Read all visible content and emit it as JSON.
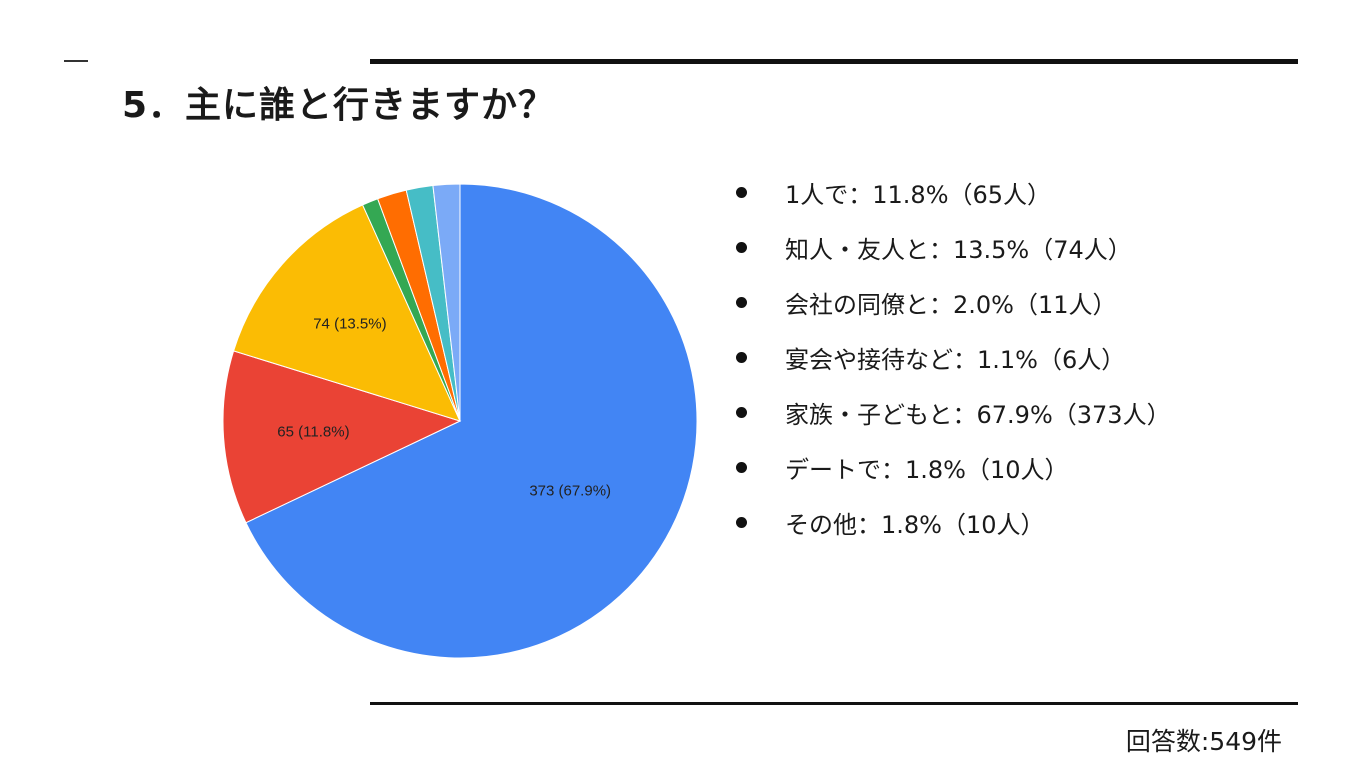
{
  "title": "5．主に誰と行きますか？",
  "footer": "回答数:549件",
  "chart_data": {
    "type": "pie",
    "title": "",
    "start_angle_deg": 0,
    "direction": "clockwise",
    "slices": [
      {
        "label": "家族・子どもと",
        "value": 373,
        "pct": 67.9,
        "color": "#4285F4",
        "data_label": "373 (67.9%)"
      },
      {
        "label": "1人で",
        "value": 65,
        "pct": 11.8,
        "color": "#EA4335",
        "data_label": "65 (11.8%)"
      },
      {
        "label": "知人・友人と",
        "value": 74,
        "pct": 13.5,
        "color": "#FBBC04",
        "data_label": "74 (13.5%)"
      },
      {
        "label": "宴会や接待など",
        "value": 6,
        "pct": 1.1,
        "color": "#34A853",
        "data_label": ""
      },
      {
        "label": "会社の同僚と",
        "value": 11,
        "pct": 2.0,
        "color": "#FF6D01",
        "data_label": ""
      },
      {
        "label": "デートで",
        "value": 10,
        "pct": 1.8,
        "color": "#46BDC6",
        "data_label": ""
      },
      {
        "label": "その他",
        "value": 10,
        "pct": 1.8,
        "color": "#7BAAF7",
        "data_label": ""
      }
    ]
  },
  "legend": [
    "1人で：11.8%（65人）",
    "知人・友人と：13.5%（74人）",
    "会社の同僚と：2.0%（11人）",
    "宴会や接待など：1.1%（6人）",
    "家族・子どもと：67.9%（373人）",
    "デートで：1.8%（10人）",
    "その他：1.8%（10人）"
  ]
}
